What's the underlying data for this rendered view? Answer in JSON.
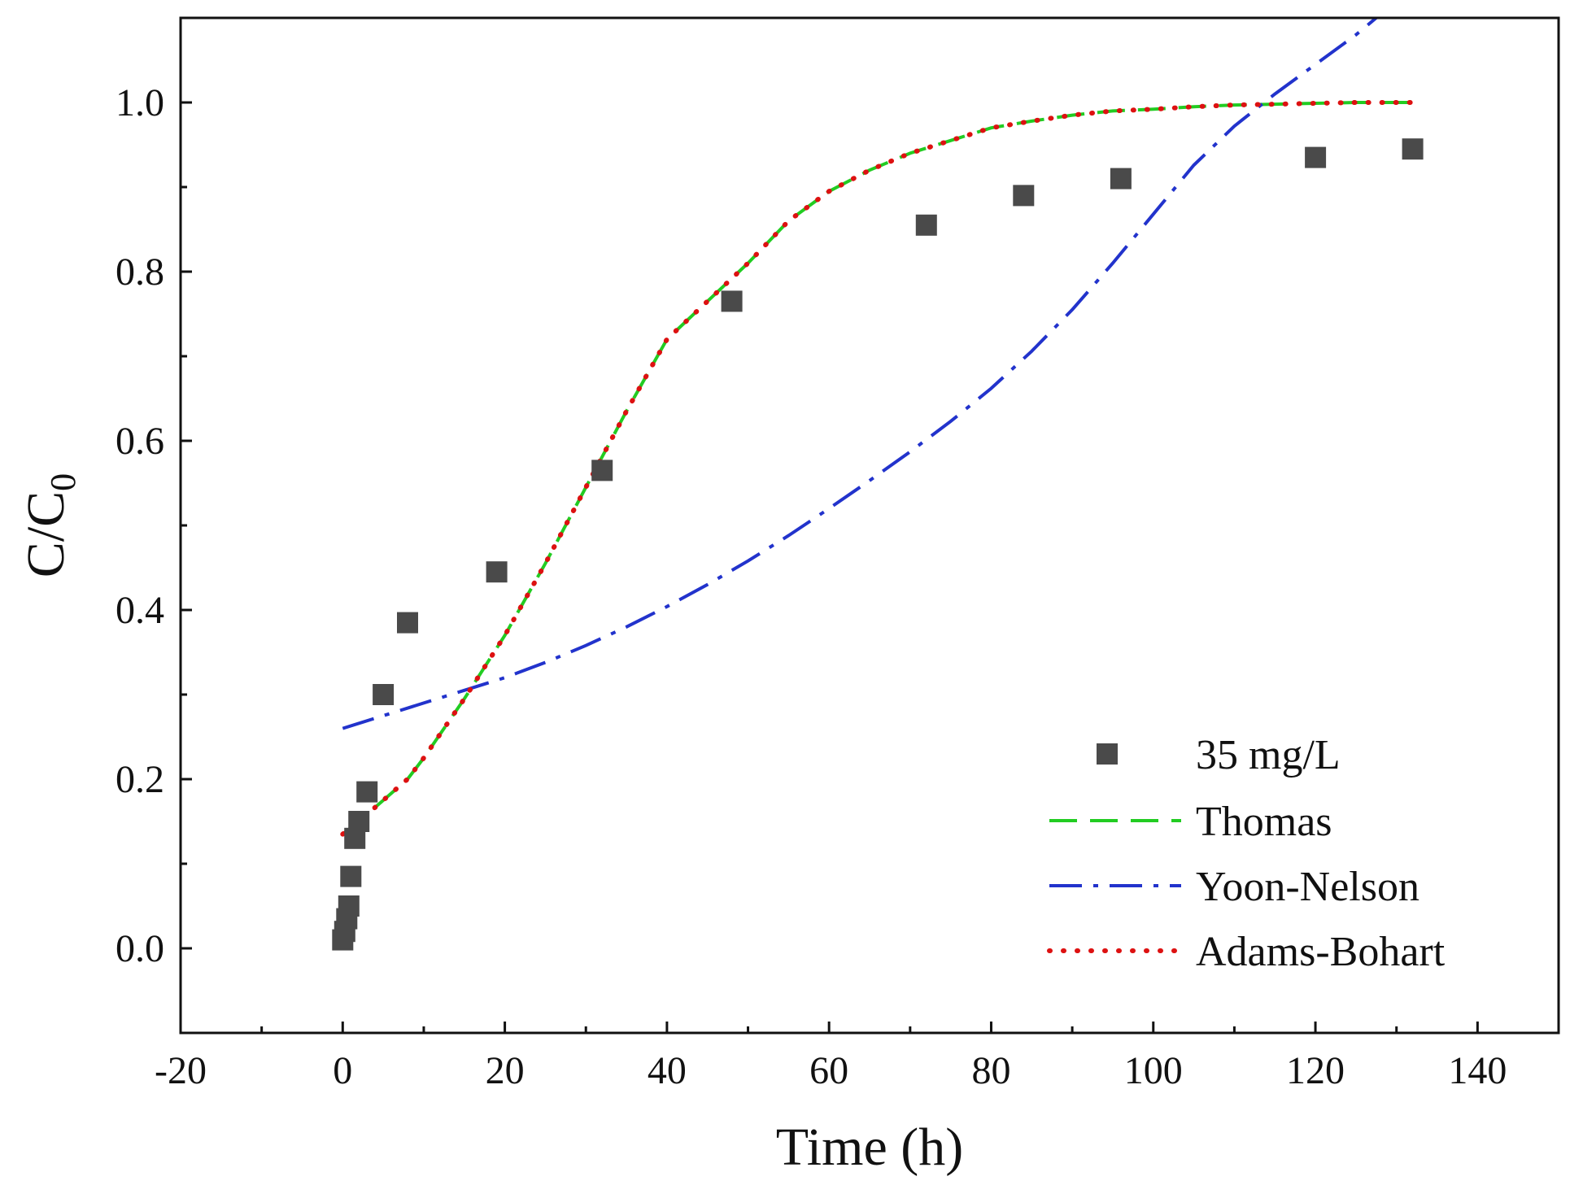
{
  "chart_data": {
    "type": "scatter",
    "title": "",
    "xlabel": "Time  (h)",
    "ylabel_main": "C/C",
    "ylabel_sub": "0",
    "xlim": [
      -20,
      150
    ],
    "ylim": [
      -0.1,
      1.1
    ],
    "x_ticks": [
      -20,
      0,
      20,
      40,
      60,
      80,
      100,
      120,
      140
    ],
    "x_tick_labels": [
      "-20",
      "0",
      "20",
      "40",
      "60",
      "80",
      "100",
      "120",
      "140"
    ],
    "y_ticks": [
      0.0,
      0.2,
      0.4,
      0.6,
      0.8,
      1.0
    ],
    "y_tick_labels": [
      "0.0",
      "0.2",
      "0.4",
      "0.6",
      "0.8",
      "1.0"
    ],
    "grid": false,
    "legend_position": "bottom-right",
    "series": [
      {
        "name": "35 mg/L",
        "kind": "markers",
        "color": "#4a4a4a",
        "x": [
          0,
          0.25,
          0.5,
          0.75,
          1,
          1.5,
          2,
          3,
          5,
          8,
          19,
          32,
          48,
          72,
          84,
          96,
          120,
          132
        ],
        "y": [
          0.01,
          0.02,
          0.035,
          0.05,
          0.085,
          0.13,
          0.15,
          0.185,
          0.3,
          0.385,
          0.445,
          0.565,
          0.765,
          0.855,
          0.89,
          0.91,
          0.935,
          0.945
        ]
      },
      {
        "name": "Thomas",
        "kind": "line",
        "dash": "dashed",
        "color": "#22cc22",
        "x": [
          0,
          2,
          5,
          8,
          10,
          15,
          20,
          25,
          30,
          35,
          40,
          45,
          50,
          55,
          60,
          65,
          70,
          75,
          80,
          85,
          90,
          95,
          100,
          105,
          110,
          115,
          120,
          125,
          132
        ],
        "y": [
          0.135,
          0.15,
          0.175,
          0.2,
          0.225,
          0.295,
          0.37,
          0.455,
          0.545,
          0.635,
          0.72,
          0.765,
          0.81,
          0.86,
          0.895,
          0.92,
          0.94,
          0.955,
          0.97,
          0.978,
          0.985,
          0.99,
          0.992,
          0.995,
          0.997,
          0.998,
          0.999,
          1.0,
          1.0
        ]
      },
      {
        "name": "Yoon-Nelson",
        "kind": "line",
        "dash": "dash-dot",
        "color": "#2233cc",
        "x": [
          0,
          5,
          10,
          15,
          20,
          25,
          30,
          35,
          40,
          45,
          50,
          55,
          60,
          65,
          70,
          75,
          80,
          85,
          90,
          95,
          100,
          105,
          110,
          115,
          120,
          125,
          127.5
        ],
        "y": [
          0.26,
          0.275,
          0.29,
          0.305,
          0.32,
          0.338,
          0.358,
          0.38,
          0.404,
          0.43,
          0.458,
          0.488,
          0.52,
          0.553,
          0.587,
          0.623,
          0.662,
          0.706,
          0.755,
          0.81,
          0.868,
          0.926,
          0.972,
          1.01,
          1.045,
          1.08,
          1.1
        ]
      },
      {
        "name": "Adams-Bohart",
        "kind": "line",
        "dash": "dotted",
        "color": "#dd1111",
        "x": [
          0,
          2,
          5,
          8,
          10,
          15,
          20,
          25,
          30,
          35,
          40,
          45,
          50,
          55,
          60,
          65,
          70,
          75,
          80,
          85,
          90,
          95,
          100,
          105,
          110,
          115,
          120,
          125,
          132
        ],
        "y": [
          0.135,
          0.15,
          0.175,
          0.2,
          0.225,
          0.295,
          0.37,
          0.455,
          0.545,
          0.635,
          0.72,
          0.765,
          0.81,
          0.86,
          0.895,
          0.92,
          0.94,
          0.955,
          0.97,
          0.978,
          0.985,
          0.99,
          0.992,
          0.995,
          0.997,
          0.998,
          0.999,
          1.0,
          1.0
        ]
      }
    ]
  }
}
